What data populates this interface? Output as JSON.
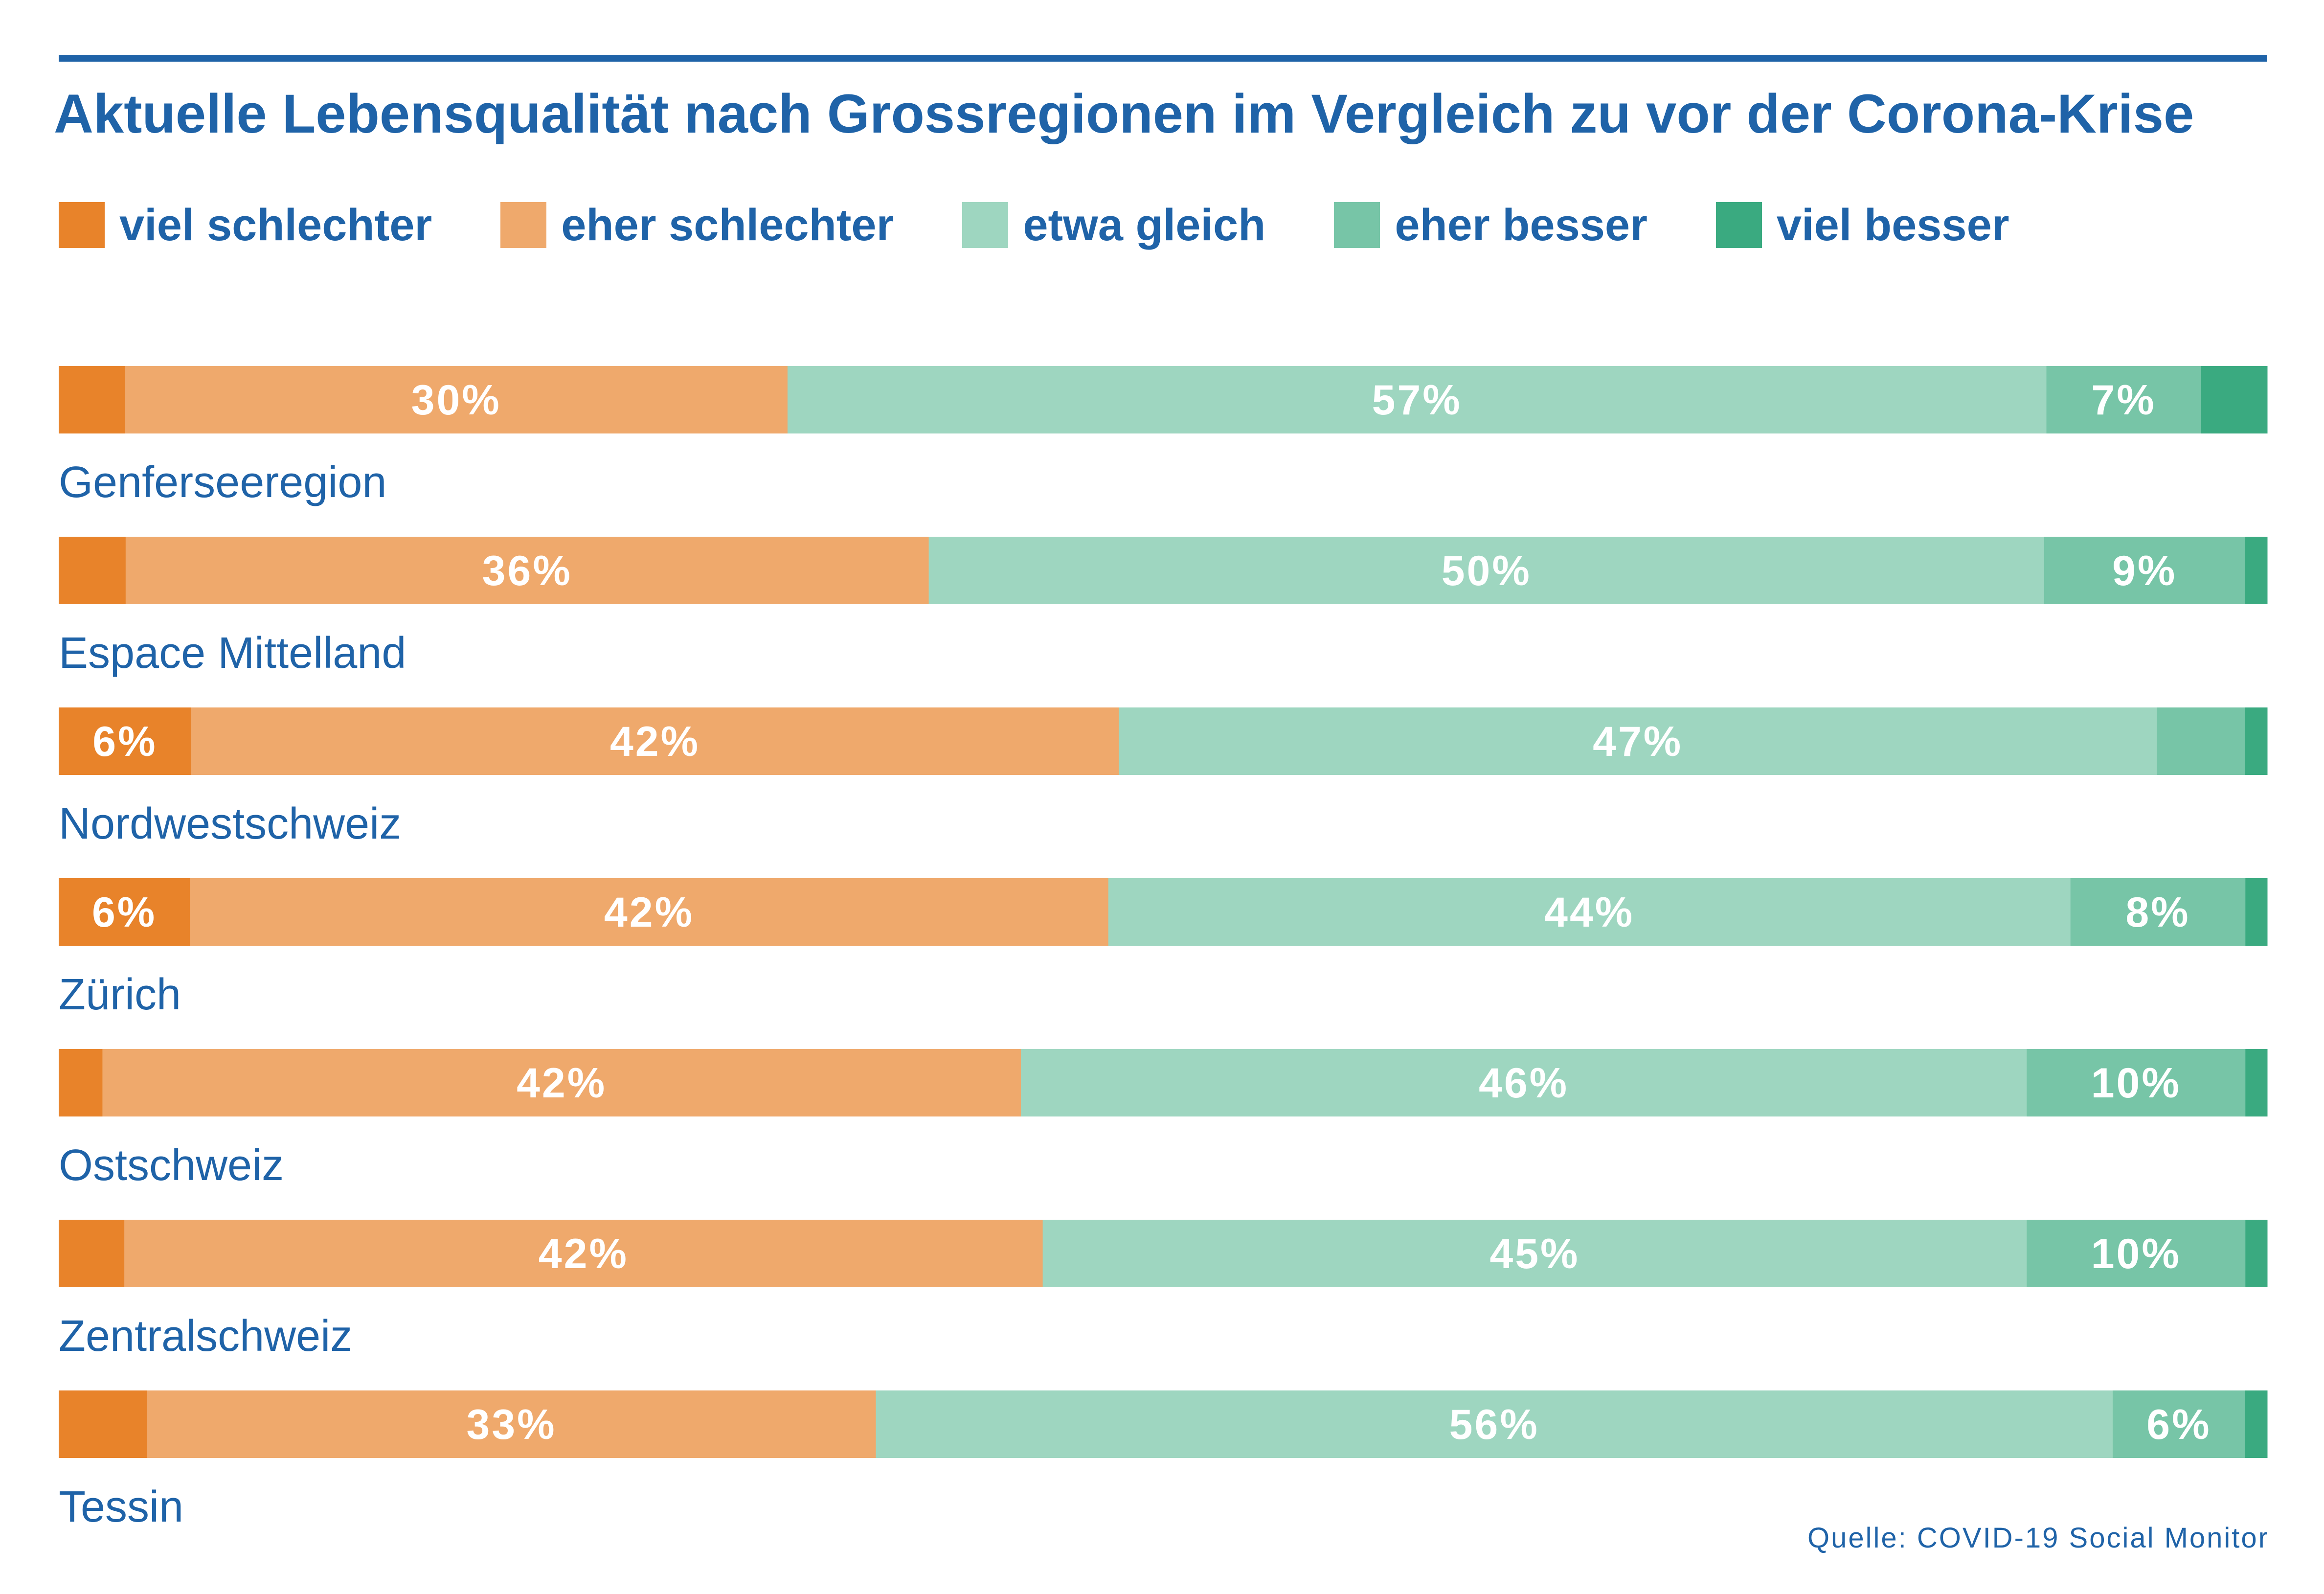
{
  "title": "Aktuelle Lebensqualität nach Grossregionen im Vergleich zu vor der Corona-Krise",
  "source": "Quelle: COVID-19 Social Monitor",
  "colors": {
    "viel_schlechter": "#e8832a",
    "eher_schlechter": "#efa96c",
    "etwa_gleich": "#9ed6c0",
    "eher_besser": "#77c5a7",
    "viel_besser": "#3aaa80",
    "text": "#1f63a8"
  },
  "legend": [
    {
      "label": "viel schlechter",
      "color": "#e8832a"
    },
    {
      "label": "eher schlechter",
      "color": "#efa96c"
    },
    {
      "label": "etwa gleich",
      "color": "#9ed6c0"
    },
    {
      "label": "eher besser",
      "color": "#77c5a7"
    },
    {
      "label": "viel besser",
      "color": "#3aaa80"
    }
  ],
  "chart_data": {
    "type": "bar",
    "orientation": "horizontal",
    "stacked": "100%",
    "categories": [
      "Genferseeregion",
      "Espace Mittelland",
      "Nordwestschweiz",
      "Zürich",
      "Ostschweiz",
      "Zentralschweiz",
      "Tessin"
    ],
    "series": [
      {
        "name": "viel schlechter",
        "color": "#e8832a",
        "values": [
          3,
          3,
          6,
          6,
          2,
          3,
          4
        ],
        "labels": [
          "",
          "",
          "6%",
          "6%",
          "",
          "",
          ""
        ]
      },
      {
        "name": "eher schlechter",
        "color": "#efa96c",
        "values": [
          30,
          36,
          42,
          42,
          42,
          42,
          33
        ],
        "labels": [
          "30%",
          "36%",
          "42%",
          "42%",
          "42%",
          "42%",
          "33%"
        ]
      },
      {
        "name": "etwa gleich",
        "color": "#9ed6c0",
        "values": [
          57,
          50,
          47,
          44,
          46,
          45,
          56
        ],
        "labels": [
          "57%",
          "50%",
          "47%",
          "44%",
          "46%",
          "45%",
          "56%"
        ]
      },
      {
        "name": "eher besser",
        "color": "#77c5a7",
        "values": [
          7,
          9,
          4,
          8,
          10,
          10,
          6
        ],
        "labels": [
          "7%",
          "9%",
          "",
          "8%",
          "10%",
          "10%",
          "6%"
        ]
      },
      {
        "name": "viel besser",
        "color": "#3aaa80",
        "values": [
          3,
          1,
          1,
          1,
          1,
          1,
          1
        ],
        "labels": [
          "",
          "",
          "",
          "",
          "",
          "",
          ""
        ]
      }
    ],
    "xlim": [
      0,
      100
    ],
    "grid": false,
    "legend_position": "top-left"
  }
}
